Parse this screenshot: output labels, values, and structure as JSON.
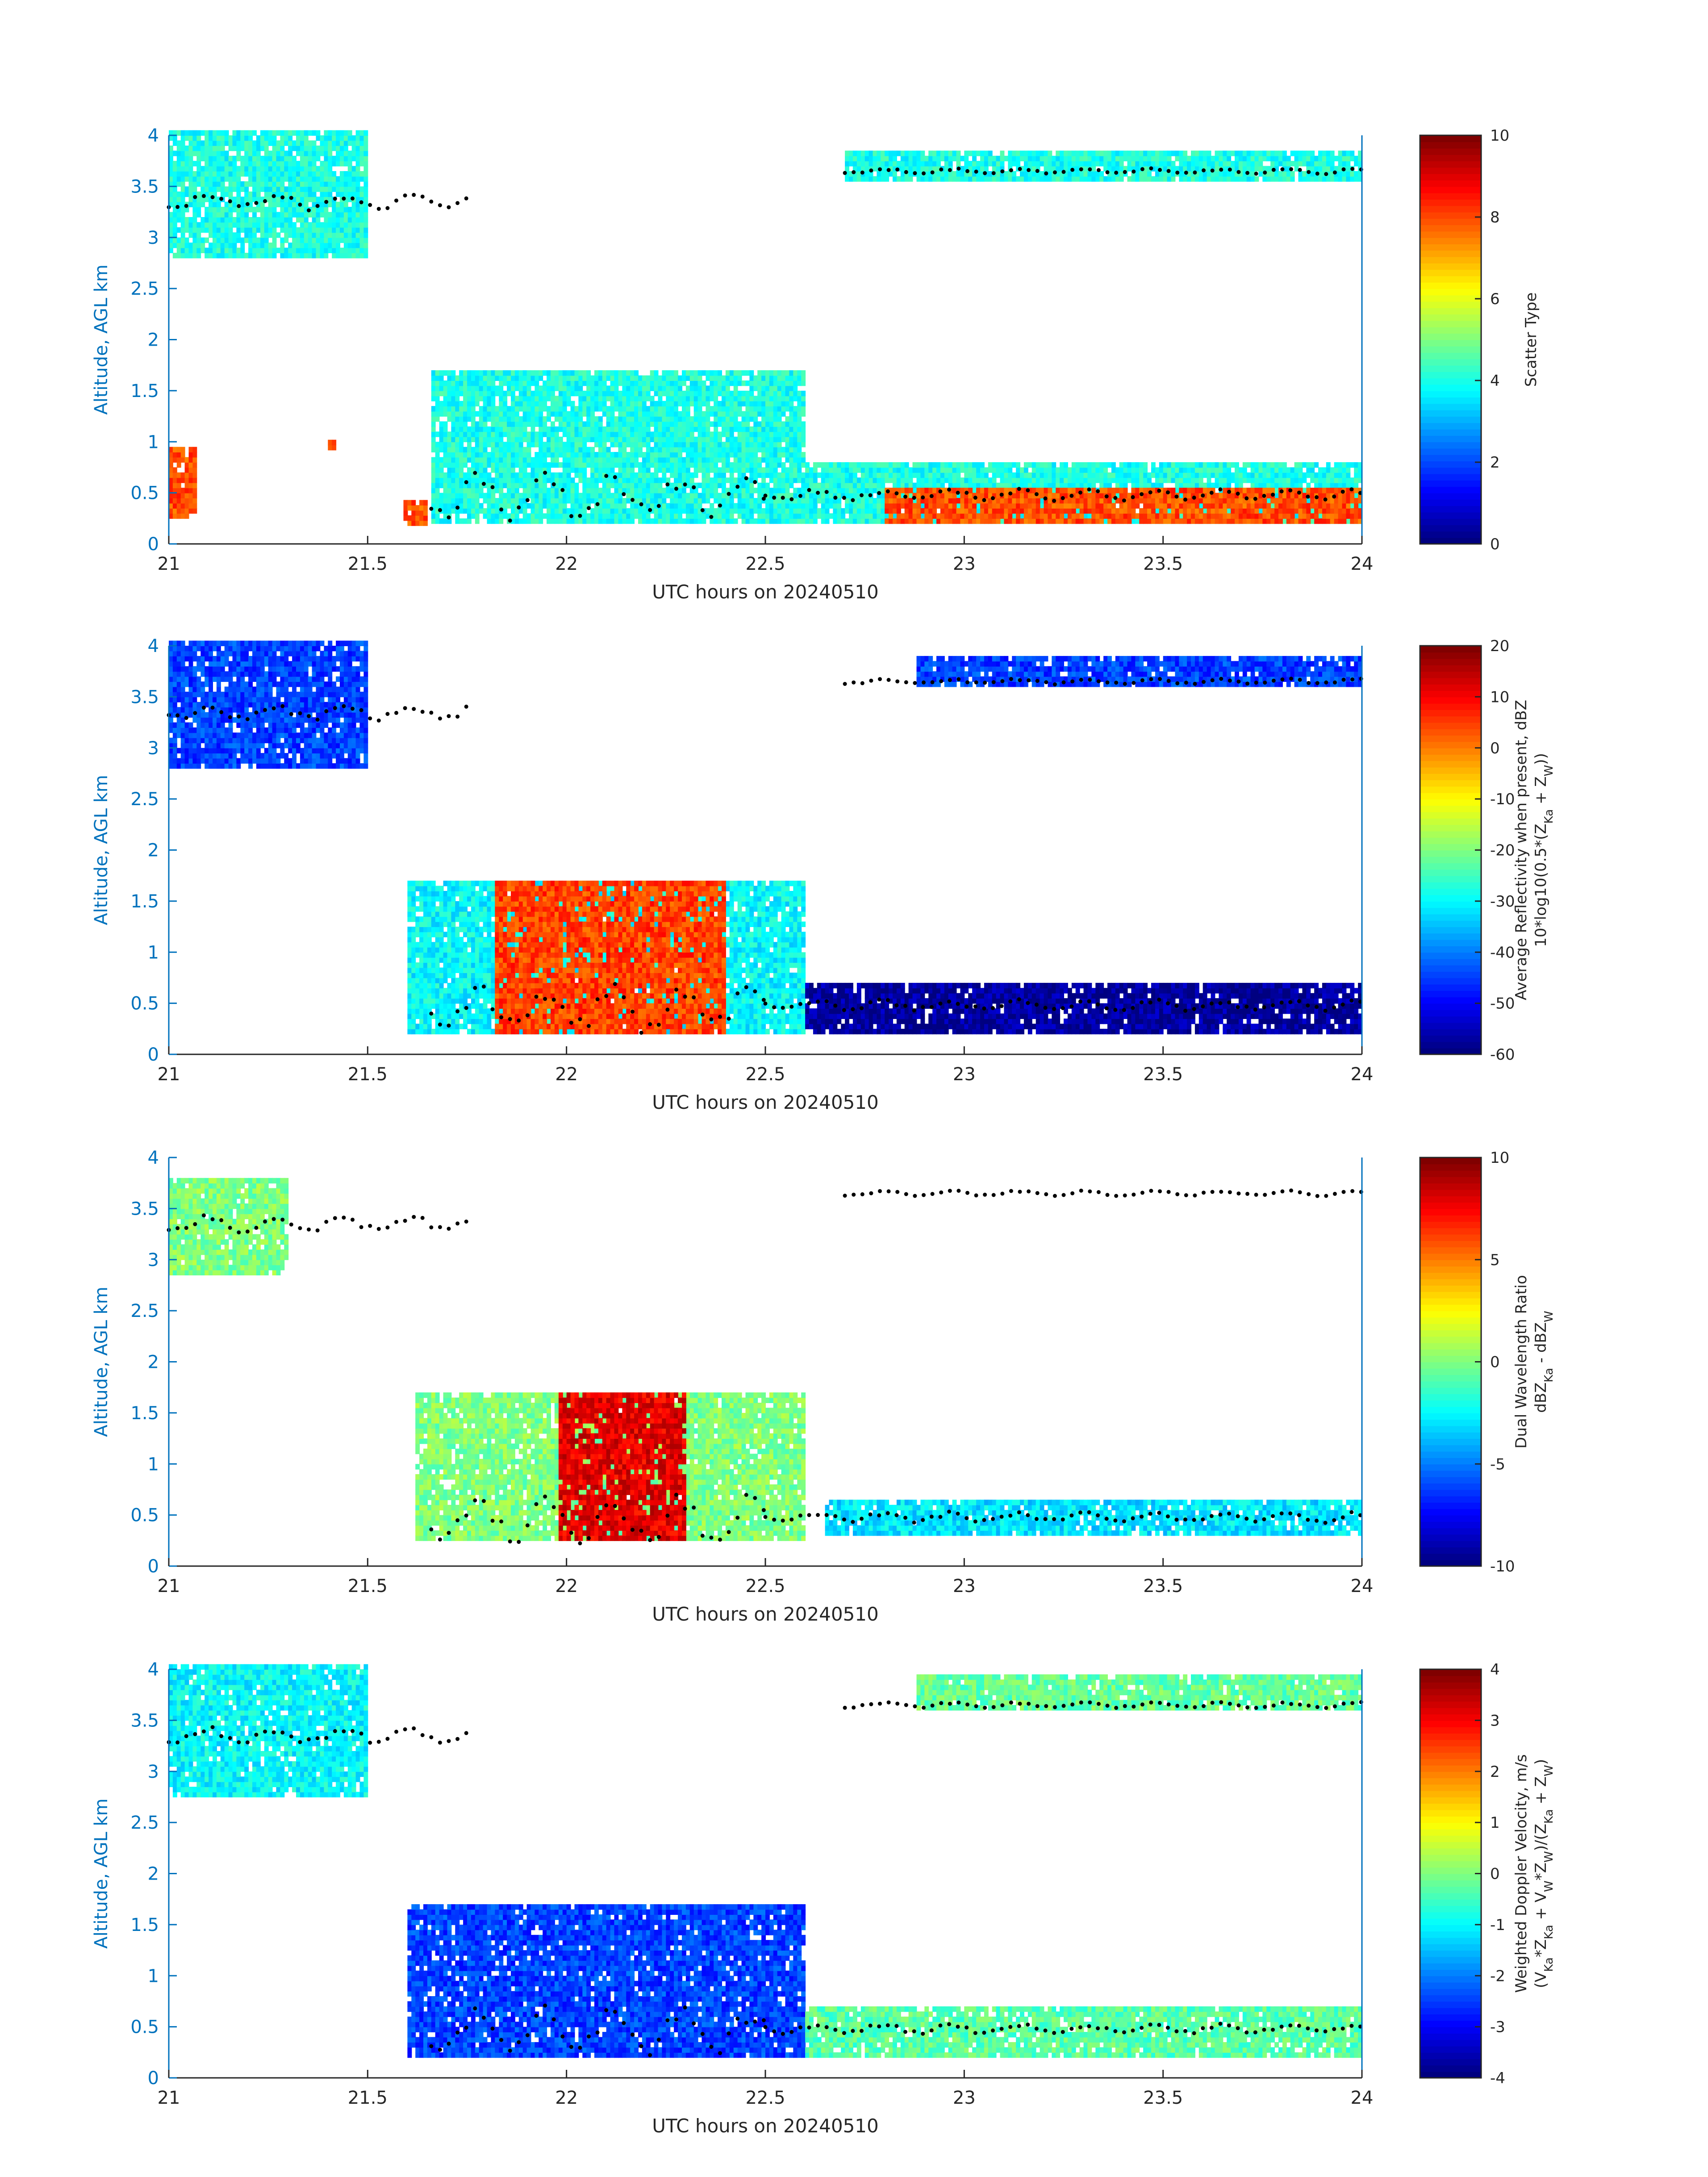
{
  "figure": {
    "colors": {
      "axis_y": "#0072bd",
      "axis_x": "#262626",
      "background": "#ffffff",
      "points": "#000000"
    }
  },
  "chart_data": [
    {
      "type": "heatmap",
      "id": "scatter-type",
      "xlabel": "UTC hours on 20240510",
      "ylabel": "Altitude, AGL km",
      "xlim": [
        21,
        24
      ],
      "ylim": [
        0,
        4
      ],
      "xticks": [
        "21",
        "21.5",
        "22",
        "22.5",
        "23",
        "23.5",
        "24"
      ],
      "yticks": [
        "0",
        "0.5",
        "1",
        "1.5",
        "2",
        "2.5",
        "3",
        "3.5",
        "4"
      ],
      "colorbar": {
        "label": [
          "Scatter Type"
        ],
        "min": 0,
        "max": 10,
        "ticks": [
          "0",
          "2",
          "4",
          "6",
          "8",
          "10"
        ],
        "colormap": "jet"
      },
      "regions": [
        {
          "x": [
            21.0,
            21.5
          ],
          "y": [
            2.8,
            4.0
          ],
          "value": 4
        },
        {
          "x": [
            21.66,
            22.6
          ],
          "y": [
            0.2,
            1.7
          ],
          "value": 4
        },
        {
          "x": [
            22.7,
            24.0
          ],
          "y": [
            3.55,
            3.8
          ],
          "value": 4
        },
        {
          "x": [
            22.6,
            24.0
          ],
          "y": [
            0.2,
            0.8
          ],
          "value": 4
        },
        {
          "x": [
            21.0,
            21.07
          ],
          "y": [
            0.25,
            0.95
          ],
          "value": 8
        },
        {
          "x": [
            21.59,
            21.65
          ],
          "y": [
            0.18,
            0.4
          ],
          "value": 8
        },
        {
          "x": [
            21.4,
            21.42
          ],
          "y": [
            0.92,
            1.02
          ],
          "value": 8
        },
        {
          "x": [
            22.8,
            24.0
          ],
          "y": [
            0.2,
            0.5
          ],
          "value": 8
        }
      ],
      "cloud_top_points": "black dots near 3.3–3.7 km and 0.3–0.8 km"
    },
    {
      "type": "heatmap",
      "id": "reflectivity",
      "xlabel": "UTC hours on 20240510",
      "ylabel": "Altitude, AGL km",
      "xlim": [
        21,
        24
      ],
      "ylim": [
        0,
        4
      ],
      "xticks": [
        "21",
        "21.5",
        "22",
        "22.5",
        "23",
        "23.5",
        "24"
      ],
      "yticks": [
        "0",
        "0.5",
        "1",
        "1.5",
        "2",
        "2.5",
        "3",
        "3.5",
        "4"
      ],
      "colorbar": {
        "label": [
          "Average Reflectivity when present, dBZ",
          "10*log10(0.5*(Z",
          "Ka",
          " + Z",
          "W",
          "))"
        ],
        "min": -60,
        "max": 20,
        "ticks": [
          "-60",
          "-50",
          "-40",
          "-30",
          "-20",
          "-10",
          "0",
          "10",
          "20"
        ],
        "colormap": "jet"
      },
      "regions": [
        {
          "x": [
            21.0,
            21.5
          ],
          "y": [
            2.8,
            4.0
          ],
          "value": -45
        },
        {
          "x": [
            21.6,
            22.6
          ],
          "y": [
            0.2,
            1.7
          ],
          "value": -30
        },
        {
          "x": [
            21.82,
            22.4
          ],
          "y": [
            0.2,
            1.7
          ],
          "value": 5
        },
        {
          "x": [
            22.6,
            24.0
          ],
          "y": [
            0.2,
            0.7
          ],
          "value": -58
        },
        {
          "x": [
            22.88,
            24.0
          ],
          "y": [
            3.6,
            3.85
          ],
          "value": -45
        }
      ]
    },
    {
      "type": "heatmap",
      "id": "dual-wavelength-ratio",
      "xlabel": "UTC hours on 20240510",
      "ylabel": "Altitude, AGL km",
      "xlim": [
        21,
        24
      ],
      "ylim": [
        0,
        4
      ],
      "xticks": [
        "21",
        "21.5",
        "22",
        "22.5",
        "23",
        "23.5",
        "24"
      ],
      "yticks": [
        "0",
        "0.5",
        "1",
        "1.5",
        "2",
        "2.5",
        "3",
        "3.5",
        "4"
      ],
      "colorbar": {
        "label": [
          "Dual Wavelength Ratio",
          "dBZ",
          "Ka",
          " - dBZ",
          "W"
        ],
        "min": -10,
        "max": 10,
        "ticks": [
          "-10",
          "-5",
          "0",
          "5",
          "10"
        ],
        "colormap": "jet"
      },
      "regions": [
        {
          "x": [
            21.0,
            21.3
          ],
          "y": [
            2.85,
            3.75
          ],
          "value": 0
        },
        {
          "x": [
            21.62,
            22.6
          ],
          "y": [
            0.25,
            1.7
          ],
          "value": 0
        },
        {
          "x": [
            21.98,
            22.3
          ],
          "y": [
            0.25,
            1.7
          ],
          "value": 8
        },
        {
          "x": [
            22.65,
            24.0
          ],
          "y": [
            0.3,
            0.65
          ],
          "value": -3
        }
      ]
    },
    {
      "type": "heatmap",
      "id": "doppler-velocity",
      "xlabel": "UTC hours on 20240510",
      "ylabel": "Altitude, AGL km",
      "xlim": [
        21,
        24
      ],
      "ylim": [
        0,
        4
      ],
      "xticks": [
        "21",
        "21.5",
        "22",
        "22.5",
        "23",
        "23.5",
        "24"
      ],
      "yticks": [
        "0",
        "0.5",
        "1",
        "1.5",
        "2",
        "2.5",
        "3",
        "3.5",
        "4"
      ],
      "colorbar": {
        "label": [
          "Weighted Doppler Velocity, m/s",
          "(V",
          "Ka",
          "*Z",
          "Ka",
          " + V",
          "W",
          "*Z",
          "W",
          ")/(Z",
          "Ka",
          " + Z",
          "W",
          ")"
        ],
        "min": -4,
        "max": 4,
        "ticks": [
          "-4",
          "-3",
          "-2",
          "-1",
          "0",
          "1",
          "2",
          "3",
          "4"
        ],
        "colormap": "jet"
      },
      "regions": [
        {
          "x": [
            21.0,
            21.5
          ],
          "y": [
            2.75,
            4.0
          ],
          "value": -1
        },
        {
          "x": [
            21.6,
            22.6
          ],
          "y": [
            0.2,
            1.7
          ],
          "value": -2.5
        },
        {
          "x": [
            22.6,
            24.0
          ],
          "y": [
            0.2,
            0.7
          ],
          "value": -0.3
        },
        {
          "x": [
            22.88,
            24.0
          ],
          "y": [
            3.6,
            3.9
          ],
          "value": -0.2
        }
      ]
    }
  ]
}
